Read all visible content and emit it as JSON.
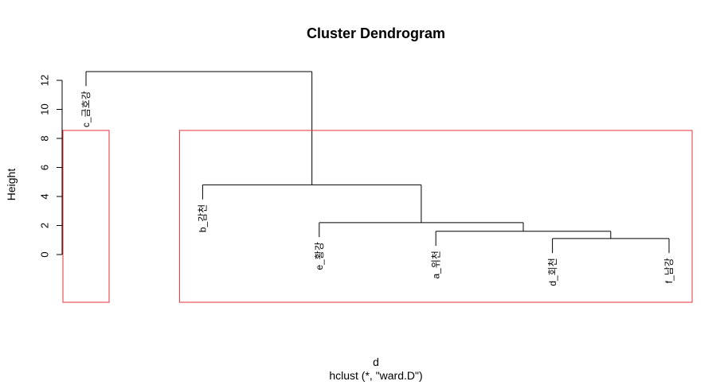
{
  "chart_data": {
    "type": "dendrogram",
    "title": "Cluster Dendrogram",
    "xlabel": "d",
    "sublabel": "hclust (*, \"ward.D\")",
    "ylabel": "Height",
    "ylim": [
      0,
      12.6
    ],
    "yticks": [
      0,
      2,
      4,
      6,
      8,
      10,
      12
    ],
    "leaf_order": [
      "c_금호강",
      "b_감천",
      "e_황강",
      "a_위천",
      "d_회천",
      "f_남강"
    ],
    "leaf_drop": 1,
    "merges": [
      {
        "left": "d_회천",
        "right": "f_남강",
        "height": 1.1
      },
      {
        "left": "a_위천",
        "right": 1,
        "height": 1.6
      },
      {
        "left": "e_황강",
        "right": 2,
        "height": 2.2
      },
      {
        "left": "b_감천",
        "right": 3,
        "height": 4.8
      },
      {
        "left": "c_금호강",
        "right": 4,
        "height": 12.6
      }
    ],
    "rect_hclust": {
      "k": 2,
      "color": "#e5323b",
      "clusters": [
        [
          "c_금호강"
        ],
        [
          "b_감천",
          "e_황강",
          "a_위천",
          "d_회천",
          "f_남강"
        ]
      ]
    }
  }
}
